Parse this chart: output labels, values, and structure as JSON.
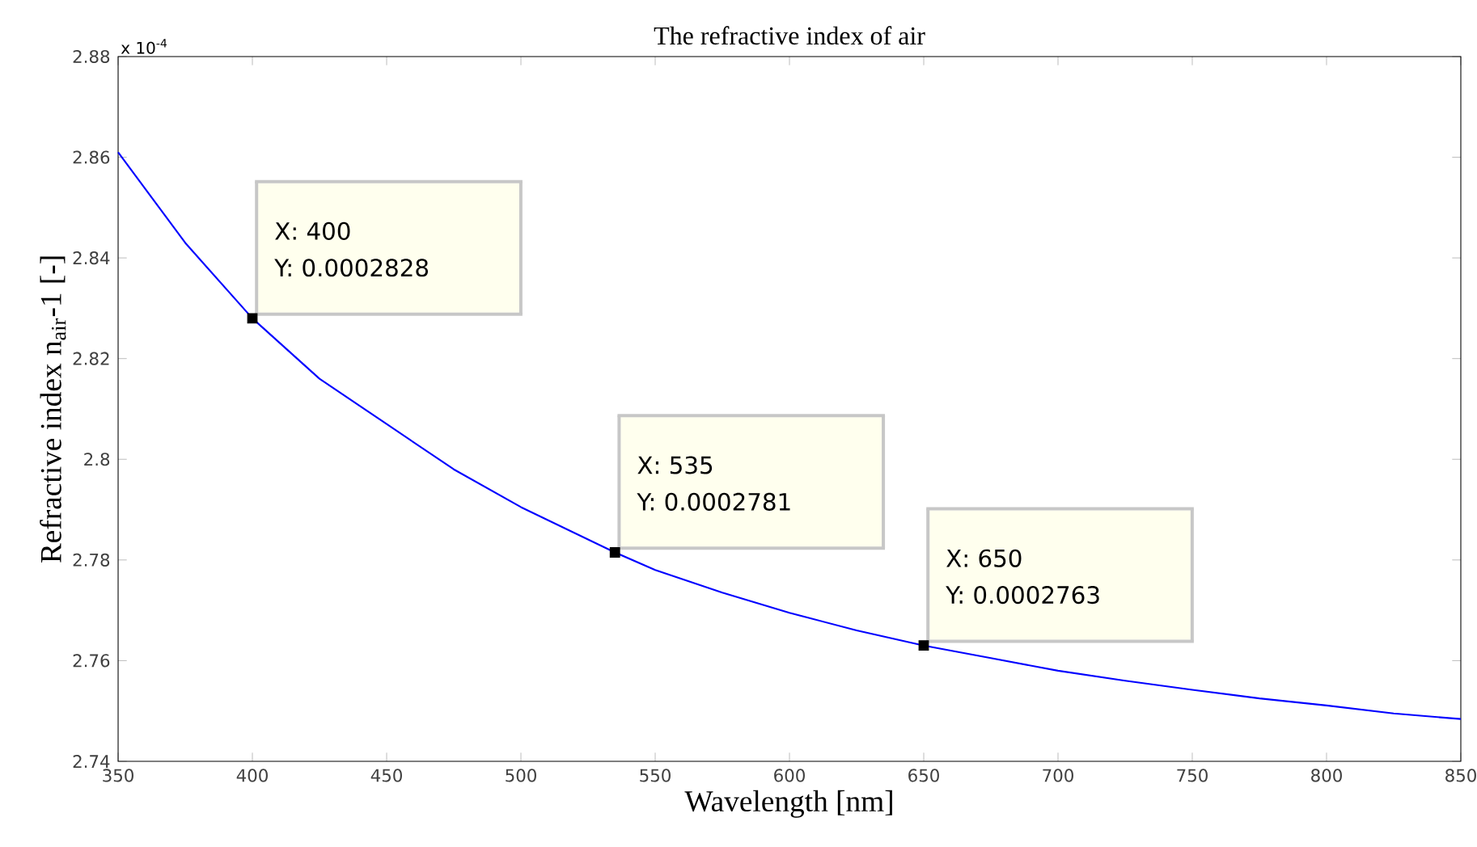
{
  "chart_data": {
    "type": "line",
    "title": "The refractive index of air",
    "xlabel": "Wavelength [nm]",
    "ylabel": "Refractive index n$_{air}$-1 [-]",
    "xlim": [
      350,
      850
    ],
    "xticks": [
      350,
      400,
      450,
      500,
      550,
      600,
      650,
      700,
      750,
      800,
      850
    ],
    "ylim": [
      2.74,
      2.88
    ],
    "yticks": [
      2.74,
      2.76,
      2.78,
      {
        "value": 2.8,
        "label": "2.8"
      },
      2.82,
      2.84,
      2.86,
      2.88
    ],
    "grid": false,
    "series": [
      {
        "color": "#0000ff",
        "marker": "none",
        "x": [
          350,
          375,
          400,
          425,
          450,
          475,
          500,
          535,
          550,
          575,
          600,
          625,
          650,
          675,
          700,
          725,
          750,
          775,
          800,
          825,
          850
        ],
        "values": [
          2.861,
          2.843,
          2.828,
          2.816,
          2.807,
          2.798,
          2.7905,
          2.7815,
          2.778,
          2.7735,
          2.7695,
          2.766,
          2.763,
          2.7605,
          2.758,
          2.756,
          2.7542,
          2.7525,
          2.7511,
          2.7495,
          2.7484
        ]
      },
      {
        "type": "scatter",
        "color": "#000000",
        "marker": "square",
        "x": [
          400,
          535,
          650
        ],
        "values": [
          2.828,
          2.7815,
          2.763
        ]
      }
    ],
    "annotations": [
      "x 10$^{-4}$",
      "X: 400",
      "Y: 0.0002828",
      "X: 535",
      "Y: 0.0002781",
      "X: 650",
      "Y: 0.0002763"
    ]
  }
}
